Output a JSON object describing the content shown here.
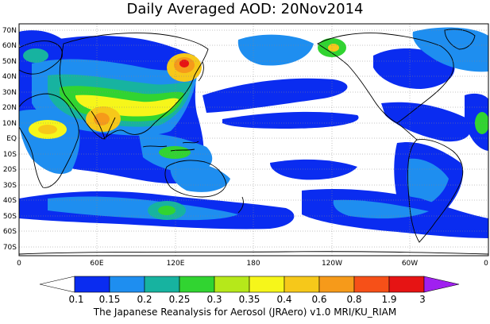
{
  "title": "Daily Averaged AOD: 20Nov2014",
  "map": {
    "lat_labels": [
      "70N",
      "60N",
      "50N",
      "40N",
      "30N",
      "20N",
      "10N",
      "EQ",
      "10S",
      "20S",
      "30S",
      "40S",
      "50S",
      "60S",
      "70S"
    ],
    "lon_labels": [
      "0",
      "60E",
      "120E",
      "180",
      "120W",
      "60W",
      "0"
    ]
  },
  "legend": {
    "levels": [
      "0.1",
      "0.15",
      "0.2",
      "0.25",
      "0.3",
      "0.35",
      "0.4",
      "0.6",
      "0.8",
      "1.9",
      "3"
    ],
    "colors": [
      "#ffffff",
      "#0a2cf0",
      "#1e8ef0",
      "#17b3a0",
      "#31d431",
      "#b6e81a",
      "#f6f61a",
      "#f6c81a",
      "#f69a1a",
      "#f65018",
      "#e61414",
      "#a020f0"
    ]
  },
  "footer": "The Japanese Reanalysis for Aerosol (JRAero) v1.0 MRI/KU_RIAM"
}
